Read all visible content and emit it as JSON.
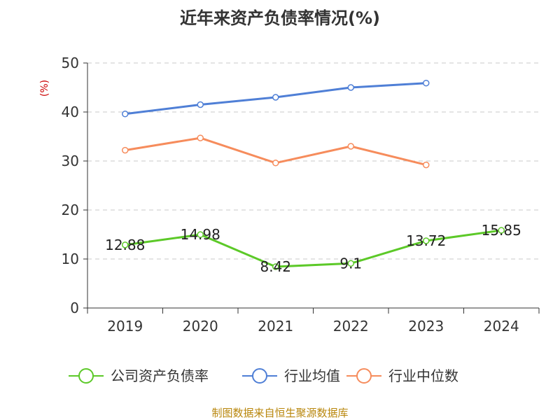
{
  "chart_data": {
    "type": "line",
    "title": "近年来资产负债率情况(%)",
    "ylabel": "(%)",
    "xlabel": "",
    "ylim": [
      0,
      50
    ],
    "yticks": [
      0,
      10,
      20,
      30,
      40,
      50
    ],
    "categories": [
      "2019",
      "2020",
      "2021",
      "2022",
      "2023",
      "2024"
    ],
    "grid": true,
    "legend_position": "bottom",
    "series": [
      {
        "name": "公司资产负债率",
        "color": "#5cc928",
        "values": [
          12.88,
          14.98,
          8.42,
          9.1,
          13.72,
          15.85
        ],
        "labels": [
          "12.88",
          "14.98",
          "8.42",
          "9.1",
          "13.72",
          "15.85"
        ]
      },
      {
        "name": "行业均值",
        "color": "#4f7fd6",
        "values": [
          39.6,
          41.5,
          43.0,
          45.0,
          45.9,
          null
        ]
      },
      {
        "name": "行业中位数",
        "color": "#f68c5c",
        "values": [
          32.2,
          34.7,
          29.6,
          33.0,
          29.2,
          null
        ]
      }
    ]
  },
  "source_text": "制图数据来自恒生聚源数据库"
}
